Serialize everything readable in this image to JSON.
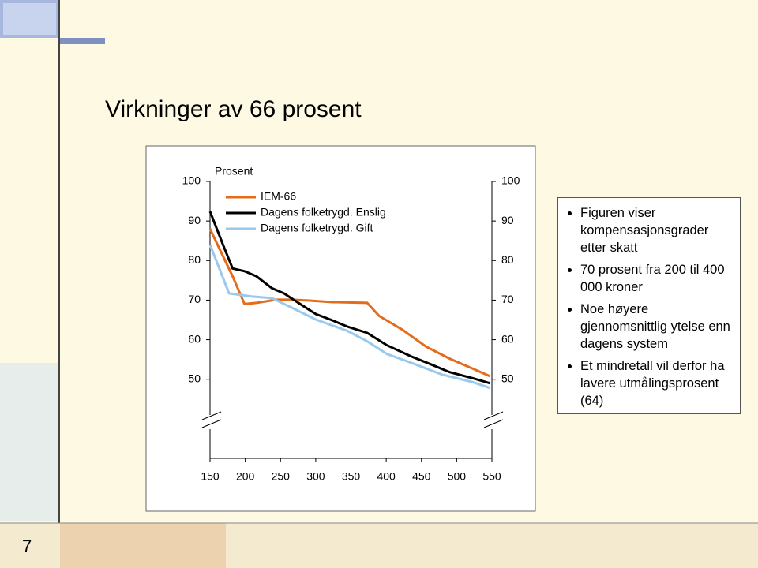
{
  "slide": {
    "title": "Virkninger av 66 prosent",
    "bullets": [
      "Figuren viser kompensasjonsgrader etter skatt",
      "70 prosent fra 200 til 400 000 kroner",
      "Noe høyere gjennomsnittlig ytelse enn dagens system",
      "Et mindretall vil derfor ha lavere utmålingsprosent (64)"
    ],
    "page_number": "7"
  },
  "chart_data": {
    "type": "line",
    "y_label": "Prosent",
    "xlim": [
      150,
      550
    ],
    "xticks": [
      150,
      200,
      250,
      300,
      350,
      400,
      450,
      500,
      550
    ],
    "ylim": [
      30,
      100
    ],
    "yticks": [
      50,
      60,
      70,
      80,
      90,
      100
    ],
    "y2lim": [
      30,
      100
    ],
    "y2ticks": [
      50,
      60,
      70,
      80,
      90,
      100
    ],
    "series": [
      {
        "name": "IEM-66",
        "color": "#e46c1a",
        "x": [
          150,
          182,
          199,
          216,
          244,
          266,
          289,
          322,
          373,
          390,
          423,
          457,
          490,
          524,
          547
        ],
        "values": [
          88,
          76,
          69,
          69.3,
          70.1,
          70.1,
          69.9,
          69.5,
          69.3,
          66,
          62.5,
          58.2,
          55.2,
          52.6,
          50.8
        ]
      },
      {
        "name": "Dagens folketrygd. Enslig",
        "color": "#000000",
        "x": [
          150,
          169,
          182,
          199,
          216,
          238,
          255,
          278,
          300,
          322,
          345,
          373,
          401,
          435,
          463,
          490,
          524,
          547
        ],
        "values": [
          92.4,
          83.7,
          78,
          77.3,
          76,
          73,
          71.7,
          69,
          66.5,
          65,
          63.3,
          61.7,
          58.6,
          55.8,
          53.8,
          51.8,
          50.2,
          49
        ]
      },
      {
        "name": "Dagens folketrygd. Gift",
        "color": "#99c9ec",
        "x": [
          150,
          177,
          210,
          238,
          266,
          300,
          345,
          373,
          401,
          435,
          479,
          524,
          547
        ],
        "values": [
          84,
          71.7,
          70.9,
          70.5,
          68.1,
          65.1,
          62.2,
          59.6,
          56.4,
          54.2,
          51.2,
          49.2,
          47.8
        ]
      }
    ]
  }
}
